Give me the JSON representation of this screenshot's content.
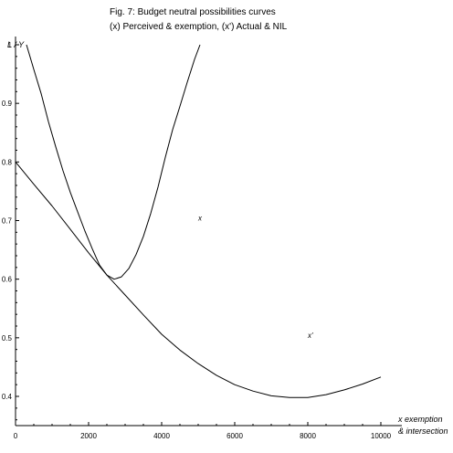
{
  "chart_data": {
    "type": "line",
    "title": "Fig. 7: Budget neutral possibilities curves",
    "subtitle": "(x) Perceived & exemption, (x') Actual & NIL",
    "xlabel_line1": "x exemption",
    "xlabel_line2": "& intersection",
    "ylabel": "L / Y",
    "xlim": [
      0,
      10000
    ],
    "ylim": [
      0.35,
      1.0
    ],
    "grid": false,
    "x_ticks": [
      0,
      2000,
      4000,
      6000,
      8000,
      10000
    ],
    "y_ticks": [
      0.4,
      0.5,
      0.6,
      0.7,
      0.8,
      0.9,
      1
    ],
    "annotations": [
      {
        "text": "x",
        "x": 5000,
        "y": 0.7
      },
      {
        "text": "x'",
        "x": 8000,
        "y": 0.5
      }
    ],
    "series": [
      {
        "label": "x",
        "x": [
          300,
          500,
          700,
          900,
          1100,
          1300,
          1500,
          1700,
          1900,
          2100,
          2300,
          2500,
          2700,
          2900,
          3100,
          3300,
          3500,
          3700,
          3900,
          4100,
          4300,
          4500,
          4700,
          4900,
          5050
        ],
        "y": [
          1.0,
          0.958,
          0.917,
          0.869,
          0.826,
          0.785,
          0.748,
          0.715,
          0.682,
          0.652,
          0.624,
          0.607,
          0.6,
          0.604,
          0.618,
          0.642,
          0.673,
          0.712,
          0.757,
          0.808,
          0.855,
          0.895,
          0.936,
          0.975,
          1.0
        ]
      },
      {
        "label": "x'",
        "x": [
          0,
          500,
          1000,
          1500,
          2000,
          2500,
          3000,
          3500,
          4000,
          4500,
          5000,
          5500,
          6000,
          6500,
          7000,
          7500,
          8000,
          8500,
          9000,
          9500,
          10000
        ],
        "y": [
          0.8,
          0.762,
          0.725,
          0.685,
          0.645,
          0.607,
          0.573,
          0.539,
          0.506,
          0.479,
          0.456,
          0.436,
          0.42,
          0.409,
          0.401,
          0.398,
          0.398,
          0.403,
          0.411,
          0.421,
          0.433
        ]
      }
    ]
  }
}
